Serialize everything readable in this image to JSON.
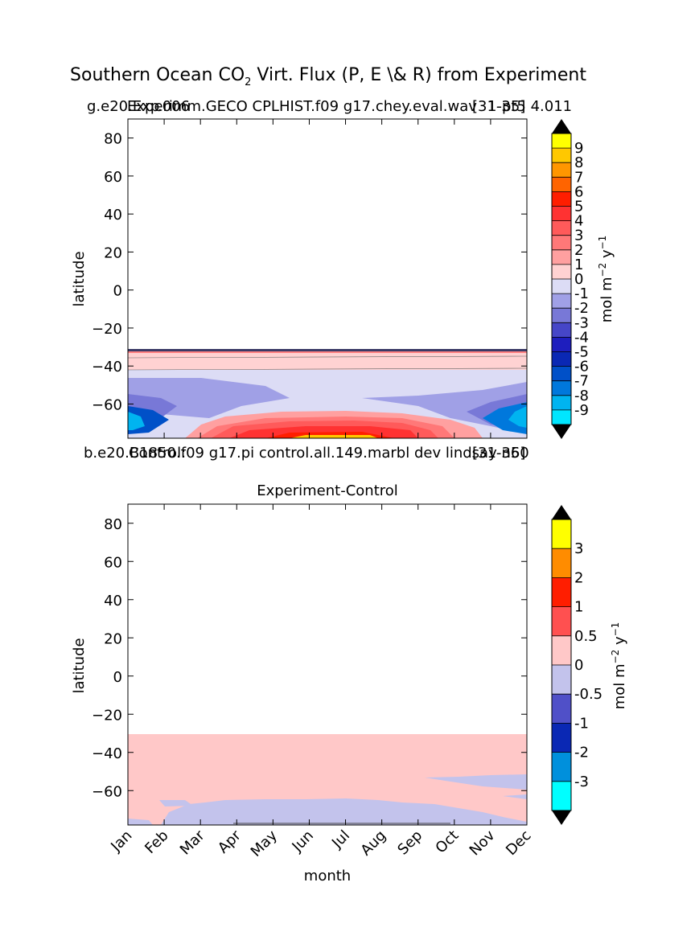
{
  "figure": {
    "title": "Southern Ocean CO",
    "title_sub": "2",
    "title_rest": " Virt. Flux (P, E \\& R) from Experiment"
  },
  "chart_data": [
    {
      "type": "contour",
      "title_left": "g.e20.Exp",
      "title_left_overlap": "m.GECO CPLHIST.f09 g17.chey.eval.wav",
      "title_left_prefix": "Experim",
      "title_left_suffix": ".006",
      "title_right": "[31-35]",
      "title_right_overlap": "1-pt5 4.011",
      "ylabel": "latitude",
      "ylim": [
        -78,
        90
      ],
      "yticks": [
        "80",
        "60",
        "40",
        "20",
        "0",
        "−20",
        "−40",
        "−60"
      ],
      "ytick_values": [
        80,
        60,
        40,
        20,
        0,
        -20,
        -40,
        -60
      ],
      "colorbar": {
        "label": "mol m",
        "label_sup": "−2",
        "label_mid": " y",
        "label_sup2": "−1",
        "levels": [
          "9",
          "8",
          "7",
          "6",
          "5",
          "4",
          "3",
          "2",
          "1",
          "0",
          "-1",
          "-2",
          "-3",
          "-4",
          "-5",
          "-6",
          "-7",
          "-8",
          "-9"
        ],
        "colors": [
          "#ffff00",
          "#ffc800",
          "#ff9600",
          "#ff6400",
          "#ff1e00",
          "#ff3232",
          "#ff5a5a",
          "#ff7878",
          "#ffa0a0",
          "#ffd2d2",
          "#dcdcf5",
          "#a0a0e6",
          "#7878d7",
          "#4646c8",
          "#1e1ebe",
          "#0a28b4",
          "#0050c8",
          "#0078dc",
          "#00b4f0",
          "#00e6ff"
        ]
      }
    },
    {
      "type": "contour",
      "title_left": "b.e20.B1850.f09 g17.pi control.all.149.marbl dev lindsay n60",
      "title_left_overlap": "Control:",
      "title_right": "[31-35]",
      "ylabel": "latitude",
      "ylim": [
        -78,
        90
      ],
      "yticks": [
        "80",
        "60",
        "40",
        "20",
        "0",
        "−20",
        "−40",
        "−60"
      ],
      "ytick_values": [
        80,
        60,
        40,
        20,
        0,
        -20,
        -40,
        -60
      ],
      "xlabel": "month",
      "xticks": [
        "Jan",
        "Feb",
        "Mar",
        "Apr",
        "May",
        "Jun",
        "Jul",
        "Aug",
        "Sep",
        "Oct",
        "Nov",
        "Dec"
      ],
      "subtitle": "Experiment-Control",
      "colorbar": {
        "label": "mol m",
        "label_sup": "−2",
        "label_mid": " y",
        "label_sup2": "−1",
        "levels": [
          "3",
          "2",
          "1",
          "0.5",
          "0",
          "-0.5",
          "-1",
          "-2",
          "-3"
        ],
        "colors": [
          "#ffff00",
          "#ff8c00",
          "#ff1e00",
          "#ff5050",
          "#ffc8c8",
          "#c3c3ec",
          "#5050c8",
          "#0a28b4",
          "#0090dc",
          "#00ffff"
        ]
      }
    }
  ]
}
